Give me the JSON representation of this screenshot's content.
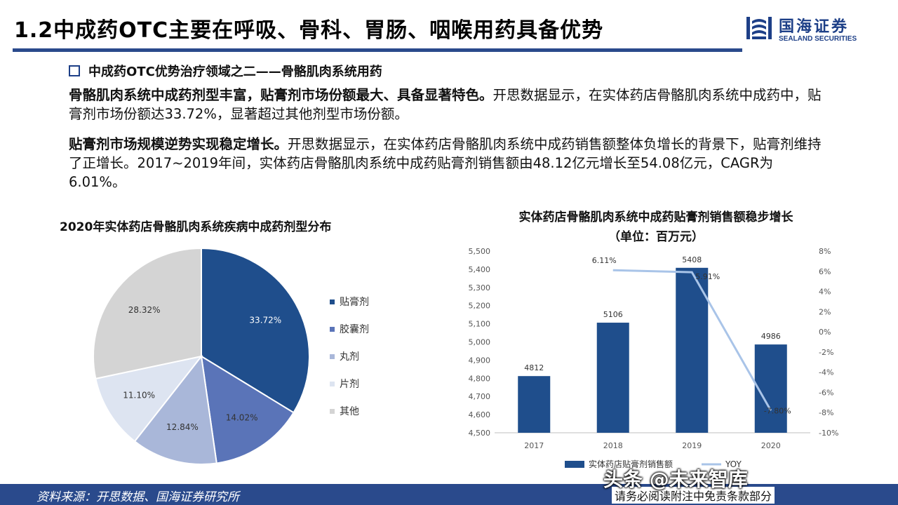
{
  "header": {
    "title": "1.2中成药OTC主要在呼吸、骨科、胃肠、咽喉用药具备优势",
    "logo_cn": "国海证券",
    "logo_en": "SEALAND SECURITIES"
  },
  "section": {
    "title": "中成药OTC优势治疗领域之二——骨骼肌肉系统用药"
  },
  "paragraphs": {
    "p1_bold": "骨骼肌肉系统中成药剂型丰富，贴膏剂市场份额最大、具备显著特色。",
    "p1_text": "开思数据显示，在实体药店骨骼肌肉系统中成药中，贴膏剂市场份额达33.72%，显著超过其他剂型市场份额。",
    "p2_bold": "贴膏剂市场规模逆势实现稳定增长。",
    "p2_text": "开思数据显示，在实体药店骨骼肌肉系统中成药销售额整体负增长的背景下，贴膏剂维持了正增长。2017~2019年间，实体药店骨骼肌肉系统中成药贴膏剂销售额由48.12亿元增长至54.08亿元，CAGR为6.01%。"
  },
  "chart_data": [
    {
      "type": "pie",
      "title": "2020年实体药店骨骼肌肉系统疾病中成药剂型分布",
      "categories": [
        "贴膏剂",
        "胶囊剂",
        "丸剂",
        "片剂",
        "其他"
      ],
      "values": [
        33.72,
        14.02,
        12.84,
        11.1,
        28.32
      ],
      "labels": [
        "33.72%",
        "14.02%",
        "12.84%",
        "11.10%",
        "28.32%"
      ],
      "colors": [
        "#1f4e8c",
        "#5a74b8",
        "#a9b7d9",
        "#dde4f1",
        "#d4d4d4"
      ],
      "legend": "right"
    },
    {
      "type": "bar",
      "title": "实体药店骨骼肌肉系统中成药贴膏剂销售额稳步增长",
      "subtitle": "（单位：百万元）",
      "categories": [
        "2017",
        "2018",
        "2019",
        "2020"
      ],
      "series": [
        {
          "name": "实体药店贴膏剂销售额",
          "type": "bar",
          "values": [
            4812,
            5106,
            5408,
            4986
          ],
          "color": "#1f4e8c"
        },
        {
          "name": "YOY",
          "type": "line",
          "values": [
            null,
            6.11,
            5.91,
            -7.8
          ],
          "labels": [
            "",
            "6.11%",
            "5.91%",
            "-7.80%"
          ],
          "color": "#a9c4e8"
        }
      ],
      "ylim": [
        4500,
        5500
      ],
      "yticks": [
        "4,500",
        "4,600",
        "4,700",
        "4,800",
        "4,900",
        "5,000",
        "5,100",
        "5,200",
        "5,300",
        "5,400",
        "5,500"
      ],
      "y2lim": [
        -10,
        8
      ],
      "y2ticks": [
        "-10%",
        "-8%",
        "-6%",
        "-4%",
        "-2%",
        "0%",
        "2%",
        "4%",
        "6%",
        "8%"
      ],
      "legend": "bottom"
    }
  ],
  "footer": {
    "source": "资料来源：开思数据、国海证券研究所",
    "note": "请务必阅读附注中免责条款部分",
    "watermark": "头条 @未来智库"
  }
}
